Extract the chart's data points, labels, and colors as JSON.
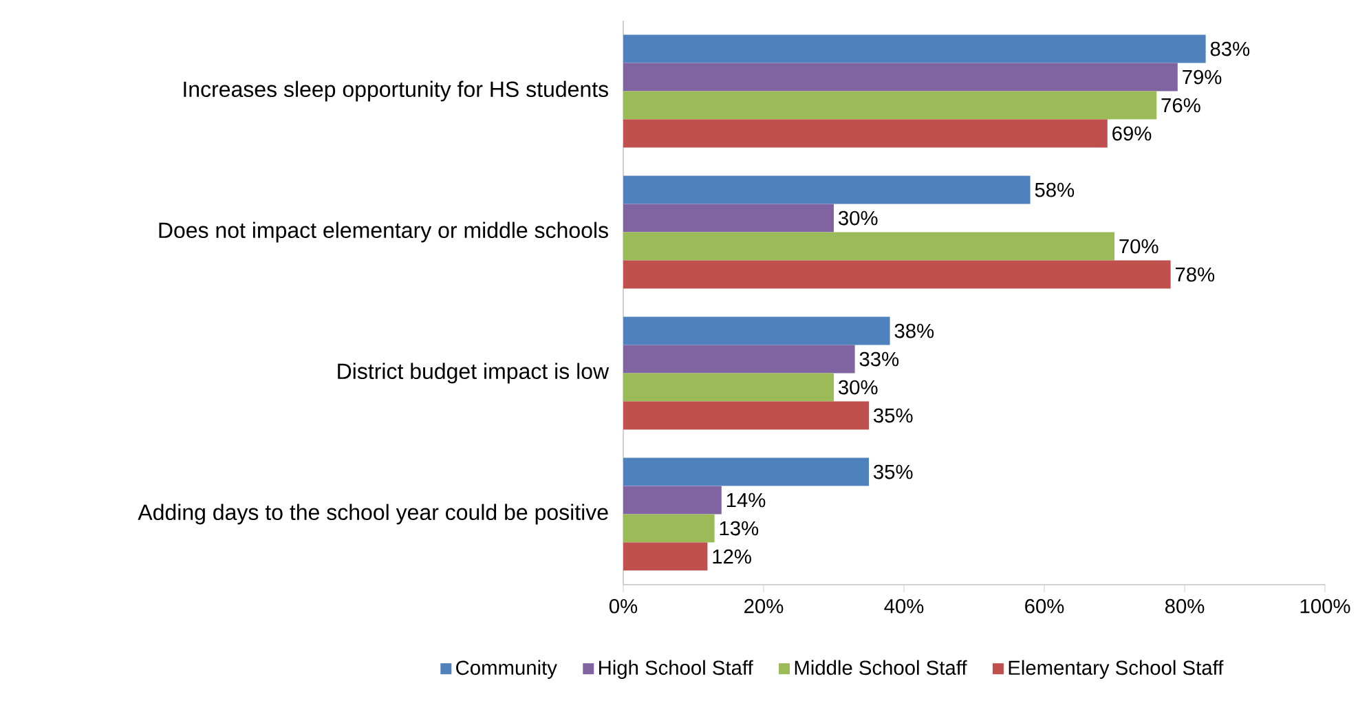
{
  "chart_data": {
    "type": "bar",
    "orientation": "horizontal",
    "categories": [
      "Increases sleep opportunity for HS students",
      "Does not impact elementary or middle schools",
      "District budget impact is low",
      "Adding days to the school year could be positive"
    ],
    "series": [
      {
        "name": "Community",
        "color": "#4f81bd",
        "values": [
          83,
          58,
          38,
          35
        ],
        "value_labels": [
          "83%",
          "58%",
          "38%",
          "35%"
        ]
      },
      {
        "name": "High School Staff",
        "color": "#8064a2",
        "values": [
          79,
          30,
          33,
          14
        ],
        "value_labels": [
          "79%",
          "30%",
          "33%",
          "14%"
        ]
      },
      {
        "name": "Middle School Staff",
        "color": "#9bbb59",
        "values": [
          76,
          70,
          30,
          13
        ],
        "value_labels": [
          "76%",
          "70%",
          "30%",
          "13%"
        ]
      },
      {
        "name": "Elementary School Staff",
        "color": "#c0504d",
        "values": [
          69,
          78,
          35,
          12
        ],
        "value_labels": [
          "69%",
          "78%",
          "35%",
          "12%"
        ]
      }
    ],
    "xlim": [
      0,
      100
    ],
    "xticks": [
      {
        "value": 0,
        "label": "0%"
      },
      {
        "value": 20,
        "label": "20%"
      },
      {
        "value": 40,
        "label": "40%"
      },
      {
        "value": 60,
        "label": "60%"
      },
      {
        "value": 80,
        "label": "80%"
      },
      {
        "value": 100,
        "label": "100%"
      }
    ],
    "grid": false,
    "legend": "bottom"
  }
}
